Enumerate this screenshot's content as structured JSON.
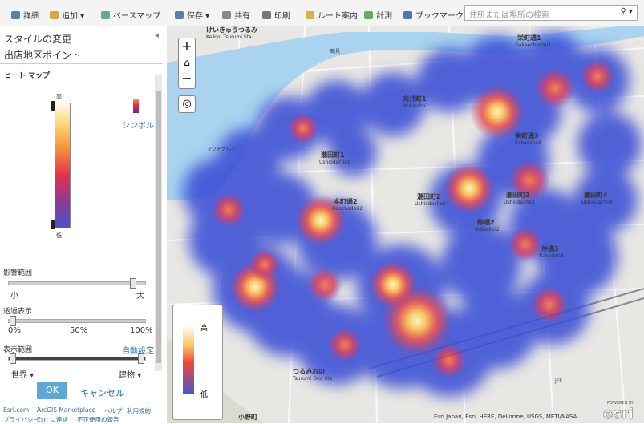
{
  "toolbar": {
    "details": "詳細",
    "add": "追加",
    "basemap": "ベースマップ",
    "save": "保存",
    "share": "共有",
    "print": "印刷",
    "directions": "ルート案内",
    "measure": "計測",
    "bookmarks": "ブックマーク",
    "search_placeholder": "住所または場所の検索"
  },
  "panel": {
    "title": "スタイルの変更",
    "layer": "出店地区ポイント",
    "style": "ヒート マップ",
    "ramp_high": "高",
    "ramp_low": "低",
    "symbol": "シンボル",
    "influence": {
      "label": "影響範囲",
      "min": "小",
      "max": "大"
    },
    "transparency": {
      "label": "透過表示",
      "ticks": [
        "0%",
        "50%",
        "100%"
      ]
    },
    "visible_range": {
      "label": "表示範囲",
      "auto": "自動設定",
      "min": "世界",
      "max": "建物"
    },
    "ok": "OK",
    "cancel": "キャンセル",
    "footer": [
      "Esri.com",
      "ArcGIS Marketplace",
      "ヘルプ",
      "利用規約",
      "プライバシー",
      "Esri に連絡",
      "不正使用の報告"
    ]
  },
  "map": {
    "labels": [
      "けいきゅうつるみ",
      "Keikyu Tsurumi Sta",
      "栄町通1",
      "Sakaechodori1",
      "向井町1",
      "Mukaicho1",
      "栄町通3",
      "Sakaecho3",
      "潮田町1",
      "Ushiodacho1",
      "本町通2",
      "Honchodori2",
      "潮田町2",
      "Ushiodacho2",
      "潮田町3",
      "Ushiodacho3",
      "潮田町4",
      "Ushiodacho4",
      "仲通2",
      "Nakadori2",
      "仲通3",
      "Nakadori3",
      "つるみおの",
      "Tsurumi Ono Sta",
      "小野町",
      "JFE",
      "マクドナルド",
      "鶴見"
    ],
    "legend_high": "高",
    "legend_low": "低",
    "attribution": "Esri Japan, Esri, HERE, DeLorme, USGS, METI/NASA",
    "powered_by": "POWERED BY",
    "logo": "esri"
  }
}
